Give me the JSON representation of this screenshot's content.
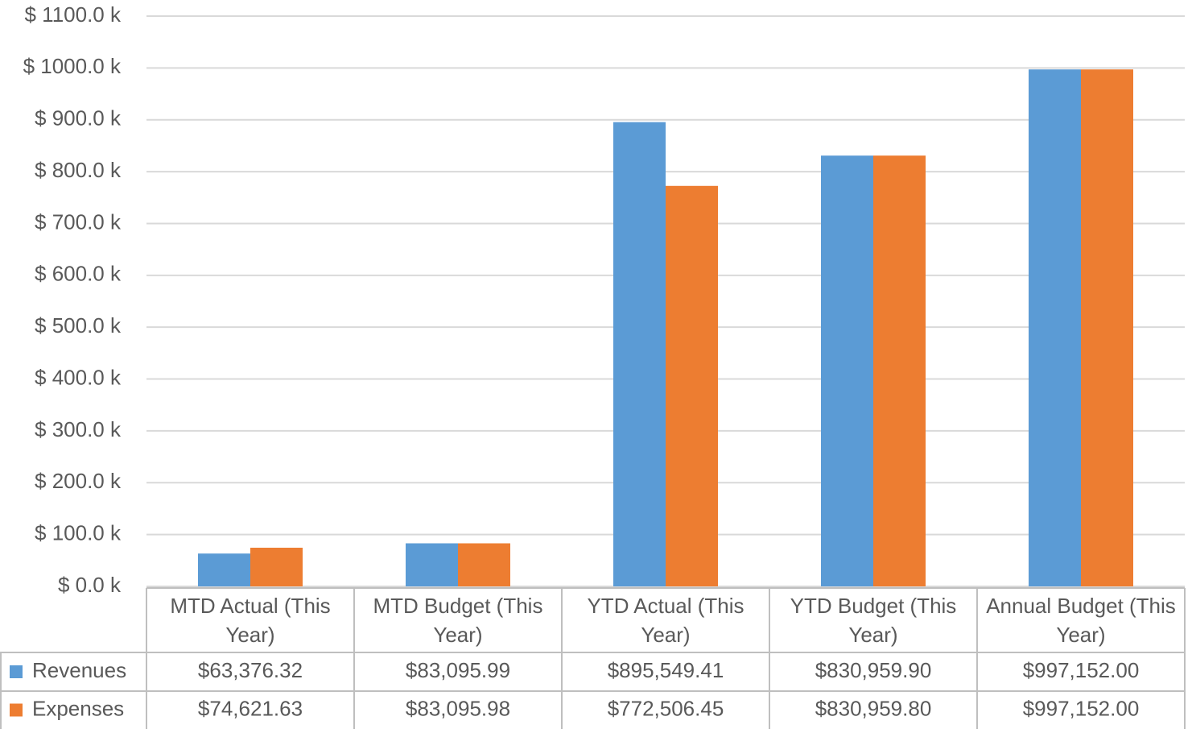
{
  "chart_data": {
    "type": "bar",
    "categories": [
      "MTD Actual (This Year)",
      "MTD Budget (This Year)",
      "YTD Actual (This Year)",
      "YTD Budget (This Year)",
      "Annual Budget (This Year)"
    ],
    "series": [
      {
        "name": "Revenues",
        "color": "#5b9bd5",
        "values": [
          63376.32,
          83095.99,
          895549.41,
          830959.9,
          997152.0
        ],
        "value_labels": [
          "$63,376.32",
          "$83,095.99",
          "$895,549.41",
          "$830,959.90",
          "$997,152.00"
        ]
      },
      {
        "name": "Expenses",
        "color": "#ed7d31",
        "values": [
          74621.63,
          83095.98,
          772506.45,
          830959.8,
          997152.0
        ],
        "value_labels": [
          "$74,621.63",
          "$83,095.98",
          "$772,506.45",
          "$830,959.80",
          "$997,152.00"
        ]
      }
    ],
    "ylim": [
      0,
      1100000
    ],
    "yticks": [
      {
        "value": 0,
        "label": "$ 0.0 k"
      },
      {
        "value": 100000,
        "label": "$ 100.0 k"
      },
      {
        "value": 200000,
        "label": "$ 200.0 k"
      },
      {
        "value": 300000,
        "label": "$ 300.0 k"
      },
      {
        "value": 400000,
        "label": "$ 400.0 k"
      },
      {
        "value": 500000,
        "label": "$ 500.0 k"
      },
      {
        "value": 600000,
        "label": "$ 600.0 k"
      },
      {
        "value": 700000,
        "label": "$ 700.0 k"
      },
      {
        "value": 800000,
        "label": "$ 800.0 k"
      },
      {
        "value": 900000,
        "label": "$ 900.0 k"
      },
      {
        "value": 1000000,
        "label": "$ 1000.0 k"
      },
      {
        "value": 1100000,
        "label": "$ 1100.0 k"
      }
    ],
    "grid": true
  }
}
